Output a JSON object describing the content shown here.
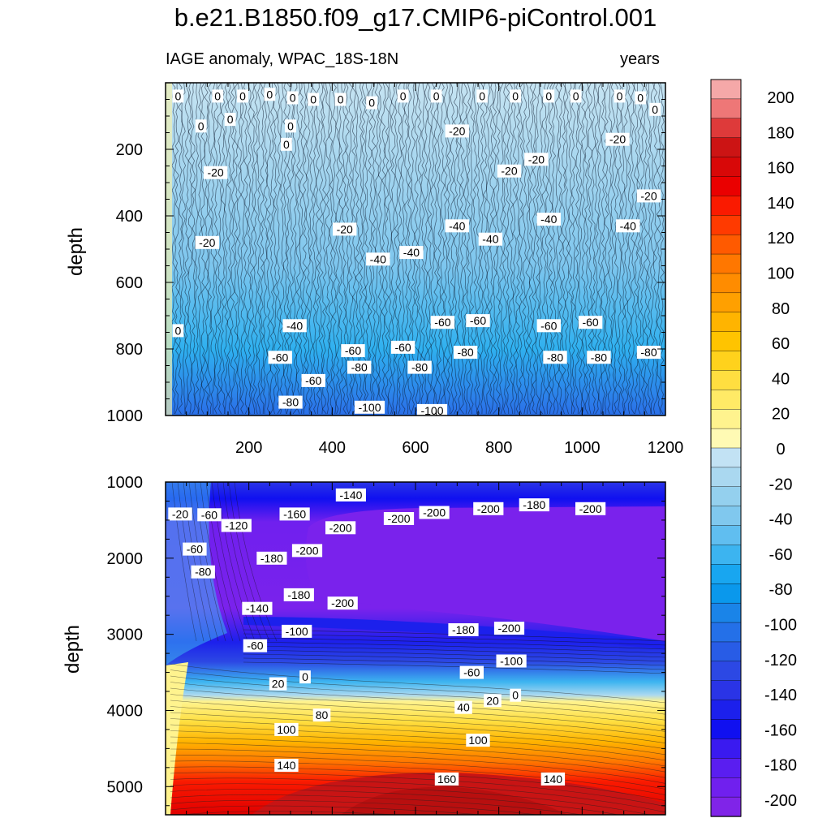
{
  "figure": {
    "title": "b.e21.B1850.f09_g17.CMIP6-piControl.001",
    "subtitle_left": "IAGE anomaly, WPAC_18S-18N",
    "subtitle_right": "years"
  },
  "chart_data": [
    {
      "type": "heatmap",
      "name": "upper panel",
      "xlabel": "",
      "ylabel": "depth",
      "xlim": [
        0,
        1200
      ],
      "ylim": [
        1000,
        0
      ],
      "xticks": [
        200,
        400,
        600,
        800,
        1000,
        1200
      ],
      "yticks": [
        200,
        400,
        600,
        800,
        1000
      ],
      "grid": false,
      "contour_labels": [
        {
          "value": "0",
          "x": 30,
          "y": 40
        },
        {
          "value": "0",
          "x": 125,
          "y": 40
        },
        {
          "value": "0",
          "x": 185,
          "y": 40
        },
        {
          "value": "0",
          "x": 250,
          "y": 35
        },
        {
          "value": "0",
          "x": 305,
          "y": 45
        },
        {
          "value": "0",
          "x": 355,
          "y": 50
        },
        {
          "value": "0",
          "x": 420,
          "y": 50
        },
        {
          "value": "0",
          "x": 495,
          "y": 60
        },
        {
          "value": "0",
          "x": 570,
          "y": 40
        },
        {
          "value": "0",
          "x": 650,
          "y": 40
        },
        {
          "value": "0",
          "x": 760,
          "y": 40
        },
        {
          "value": "0",
          "x": 840,
          "y": 40
        },
        {
          "value": "0",
          "x": 920,
          "y": 40
        },
        {
          "value": "0",
          "x": 985,
          "y": 40
        },
        {
          "value": "0",
          "x": 1090,
          "y": 40
        },
        {
          "value": "0",
          "x": 1140,
          "y": 45
        },
        {
          "value": "0",
          "x": 1175,
          "y": 80
        },
        {
          "value": "0",
          "x": 85,
          "y": 130
        },
        {
          "value": "0",
          "x": 155,
          "y": 110
        },
        {
          "value": "0",
          "x": 290,
          "y": 185
        },
        {
          "value": "0",
          "x": 300,
          "y": 130
        },
        {
          "value": "-20",
          "x": 700,
          "y": 145
        },
        {
          "value": "-20",
          "x": 1085,
          "y": 170
        },
        {
          "value": "-20",
          "x": 120,
          "y": 270
        },
        {
          "value": "-20",
          "x": 825,
          "y": 265
        },
        {
          "value": "-20",
          "x": 890,
          "y": 230
        },
        {
          "value": "-20",
          "x": 1160,
          "y": 340
        },
        {
          "value": "-20",
          "x": 430,
          "y": 440
        },
        {
          "value": "-20",
          "x": 100,
          "y": 480
        },
        {
          "value": "-40",
          "x": 700,
          "y": 430
        },
        {
          "value": "-40",
          "x": 920,
          "y": 410
        },
        {
          "value": "-40",
          "x": 1110,
          "y": 430
        },
        {
          "value": "-40",
          "x": 780,
          "y": 470
        },
        {
          "value": "-40",
          "x": 510,
          "y": 530
        },
        {
          "value": "-40",
          "x": 590,
          "y": 510
        },
        {
          "value": "-40",
          "x": 310,
          "y": 730
        },
        {
          "value": "-60",
          "x": 665,
          "y": 720
        },
        {
          "value": "-60",
          "x": 750,
          "y": 715
        },
        {
          "value": "-60",
          "x": 920,
          "y": 730
        },
        {
          "value": "-60",
          "x": 1020,
          "y": 720
        },
        {
          "value": "-60",
          "x": 570,
          "y": 795
        },
        {
          "value": "-60",
          "x": 450,
          "y": 805
        },
        {
          "value": "-60",
          "x": 275,
          "y": 825
        },
        {
          "value": "-60",
          "x": 355,
          "y": 895
        },
        {
          "value": "-80",
          "x": 720,
          "y": 810
        },
        {
          "value": "-80",
          "x": 935,
          "y": 825
        },
        {
          "value": "-80",
          "x": 1040,
          "y": 825
        },
        {
          "value": "-80",
          "x": 1160,
          "y": 810
        },
        {
          "value": "-80",
          "x": 465,
          "y": 855
        },
        {
          "value": "-80",
          "x": 610,
          "y": 855
        },
        {
          "value": "-80",
          "x": 300,
          "y": 960
        },
        {
          "value": "-100",
          "x": 490,
          "y": 975
        },
        {
          "value": "-100",
          "x": 640,
          "y": 985
        },
        {
          "value": "0",
          "x": 30,
          "y": 745
        }
      ]
    },
    {
      "type": "heatmap",
      "name": "lower panel",
      "xlabel": "",
      "ylabel": "depth",
      "xlim": [
        0,
        1200
      ],
      "ylim": [
        5370,
        1000
      ],
      "yticks": [
        1000,
        2000,
        3000,
        4000,
        5000
      ],
      "grid": false,
      "colorbar_levels": [
        -200,
        -180,
        -160,
        -140,
        -120,
        -100,
        -80,
        -60,
        -40,
        -20,
        0,
        20,
        40,
        60,
        80,
        100,
        120,
        140,
        160,
        180,
        200
      ],
      "contour_labels": [
        {
          "value": "-20",
          "x": 35,
          "y": 1420
        },
        {
          "value": "-60",
          "x": 105,
          "y": 1430
        },
        {
          "value": "-120",
          "x": 170,
          "y": 1570
        },
        {
          "value": "-60",
          "x": 70,
          "y": 1880
        },
        {
          "value": "-80",
          "x": 90,
          "y": 2180
        },
        {
          "value": "-140",
          "x": 445,
          "y": 1170
        },
        {
          "value": "-160",
          "x": 310,
          "y": 1420
        },
        {
          "value": "-200",
          "x": 420,
          "y": 1600
        },
        {
          "value": "-200",
          "x": 560,
          "y": 1480
        },
        {
          "value": "-200",
          "x": 645,
          "y": 1400
        },
        {
          "value": "-200",
          "x": 775,
          "y": 1350
        },
        {
          "value": "-180",
          "x": 885,
          "y": 1300
        },
        {
          "value": "-200",
          "x": 1020,
          "y": 1350
        },
        {
          "value": "-180",
          "x": 255,
          "y": 2000
        },
        {
          "value": "-200",
          "x": 340,
          "y": 1900
        },
        {
          "value": "-180",
          "x": 320,
          "y": 2480
        },
        {
          "value": "-200",
          "x": 425,
          "y": 2590
        },
        {
          "value": "-140",
          "x": 220,
          "y": 2660
        },
        {
          "value": "-100",
          "x": 315,
          "y": 2960
        },
        {
          "value": "-60",
          "x": 215,
          "y": 3150
        },
        {
          "value": "-180",
          "x": 715,
          "y": 2940
        },
        {
          "value": "-200",
          "x": 825,
          "y": 2920
        },
        {
          "value": "-100",
          "x": 830,
          "y": 3350
        },
        {
          "value": "-60",
          "x": 735,
          "y": 3500
        },
        {
          "value": "20",
          "x": 270,
          "y": 3650
        },
        {
          "value": "0",
          "x": 335,
          "y": 3560
        },
        {
          "value": "0",
          "x": 840,
          "y": 3800
        },
        {
          "value": "20",
          "x": 785,
          "y": 3870
        },
        {
          "value": "40",
          "x": 715,
          "y": 3960
        },
        {
          "value": "80",
          "x": 375,
          "y": 4060
        },
        {
          "value": "100",
          "x": 290,
          "y": 4250
        },
        {
          "value": "100",
          "x": 750,
          "y": 4390
        },
        {
          "value": "140",
          "x": 290,
          "y": 4720
        },
        {
          "value": "160",
          "x": 675,
          "y": 4900
        },
        {
          "value": "140",
          "x": 930,
          "y": 4900
        }
      ]
    },
    {
      "type": "colorbar",
      "tick_labels": [
        "200",
        "180",
        "160",
        "140",
        "120",
        "100",
        "80",
        "60",
        "40",
        "20",
        "0",
        "-20",
        "-40",
        "-60",
        "-80",
        "-100",
        "-120",
        "-140",
        "-160",
        "-180",
        "-200"
      ],
      "colors": [
        "#f5a8a8",
        "#ee7777",
        "#de3a3a",
        "#cc1414",
        "#d80808",
        "#ea0000",
        "#fa1a00",
        "#ff3a00",
        "#ff5a00",
        "#ff7700",
        "#ff8c00",
        "#ffa000",
        "#ffb400",
        "#ffc400",
        "#ffd21c",
        "#ffde40",
        "#ffea66",
        "#fff38e",
        "#fffab4",
        "#c2e2f4",
        "#aad8f0",
        "#94d0ee",
        "#80c8ee",
        "#60bef0",
        "#3cb4f0",
        "#18a6f0",
        "#0a98ec",
        "#1a84e8",
        "#2470e8",
        "#285ce6",
        "#2c48e4",
        "#2a34e6",
        "#1c20ec",
        "#1010f0",
        "#3a1af0",
        "#5a1ef0",
        "#7020ee",
        "#8024e8"
      ]
    }
  ]
}
